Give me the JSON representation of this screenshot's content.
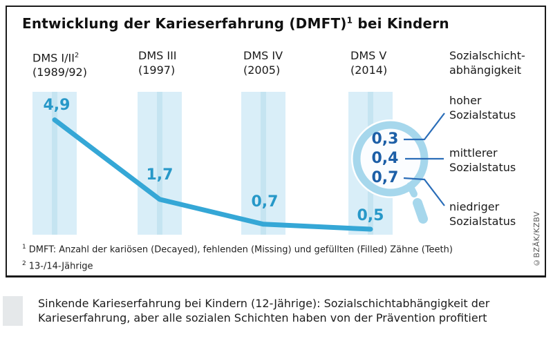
{
  "chart_data": {
    "type": "line",
    "title": "Entwicklung der Karieserfahrung (DMFT)¹ bei Kindern",
    "categories": [
      "DMS I/II² (1989/92)",
      "DMS III (1997)",
      "DMS IV (2005)",
      "DMS V (2014)"
    ],
    "values": [
      4.9,
      1.7,
      0.7,
      0.5
    ],
    "value_labels": [
      "4,9",
      "1,7",
      "0,7",
      "0,5"
    ],
    "ylim": [
      0,
      5
    ],
    "grid": "off",
    "legend_position": "right",
    "detail_breakdown": {
      "category": "DMS V (2014)",
      "title": "Sozialschichtabhängigkeit",
      "items": [
        {
          "label": "hoher Sozialstatus",
          "value": 0.3,
          "value_label": "0,3"
        },
        {
          "label": "mittlerer Sozialstatus",
          "value": 0.4,
          "value_label": "0,4"
        },
        {
          "label": "niedriger Sozialstatus",
          "value": 0.7,
          "value_label": "0,7"
        }
      ]
    }
  },
  "title": {
    "part1": "Entwicklung der Karieserfahrung (DMFT)",
    "sup": "1",
    "part2": " bei Kindern"
  },
  "columns": [
    {
      "name": "DMS I/II",
      "sup": "2",
      "year": "(1989/92)"
    },
    {
      "name": "DMS III",
      "sup": "",
      "year": "(1997)"
    },
    {
      "name": "DMS IV",
      "sup": "",
      "year": "(2005)"
    },
    {
      "name": "DMS V",
      "sup": "",
      "year": "(2014)"
    }
  ],
  "legend_header": {
    "line1": "Sozialschicht-",
    "line2": "abhängigkeit"
  },
  "magnifier": {
    "values": [
      "0,3",
      "0,4",
      "0,7"
    ],
    "labels": [
      {
        "line1": "hoher",
        "line2": "Sozialstatus"
      },
      {
        "line1": "mittlerer",
        "line2": "Sozialstatus"
      },
      {
        "line1": "niedriger",
        "line2": "Sozialstatus"
      }
    ]
  },
  "footnotes": [
    {
      "sup": "1",
      "text": "DMFT: Anzahl der kariösen (Decayed), fehlenden (Missing) und gefüllten (Filled) Zähne (Teeth)"
    },
    {
      "sup": "2",
      "text": "13-/14-Jährige"
    }
  ],
  "copyright": "©BZÄK/KZBV",
  "caption": "Sinkende Karieserfahrung bei Kindern (12-Jährige): Sozialschichtabhängigkeit der Karieserfahrung, aber alle sozialen Schichten haben von der Prävention profitiert",
  "colors": {
    "line": "#35a7d6",
    "band": "#d9eef8",
    "band_stripe": "#c5e4f1",
    "value_text": "#2798c8",
    "magnifier_ring": "#a6d7ec",
    "magnifier_value_text": "#1d5fa7",
    "pointer_line": "#2a6db8",
    "caption_square": "#e5e8ea"
  }
}
